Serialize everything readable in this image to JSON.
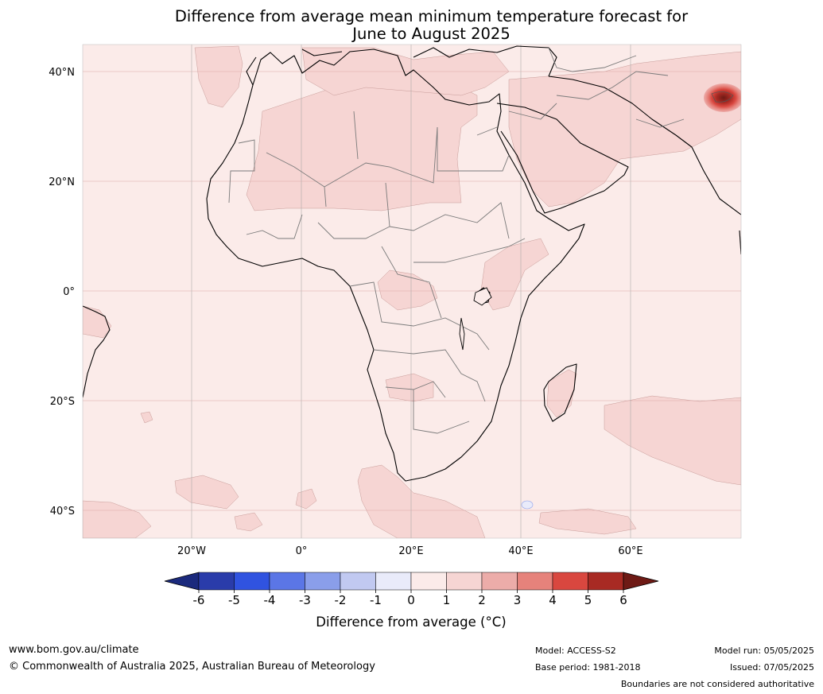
{
  "title": {
    "line1": "Difference from average mean minimum temperature forecast for",
    "line2": "June to August 2025"
  },
  "map": {
    "region": "Africa and surrounding oceans",
    "lat_labels": [
      "40°N",
      "20°N",
      "0°",
      "20°S",
      "40°S"
    ],
    "lon_labels": [
      "20°W",
      "0°",
      "20°E",
      "40°E",
      "60°E"
    ],
    "ocean_color": "#fbebe9",
    "anomaly_colors": {
      "1_to_2": "#f6d5d3",
      "2_to_3": "#ecaca9",
      "3_to_4": "#e6827b",
      "4_to_5": "#d9473f",
      "5_to_6": "#a82a23"
    }
  },
  "colorbar": {
    "ticks": [
      "-6",
      "-5",
      "-4",
      "-3",
      "-2",
      "-1",
      "0",
      "1",
      "2",
      "3",
      "4",
      "5",
      "6"
    ],
    "colors": [
      "#1b2a7d",
      "#2a3caa",
      "#3053e0",
      "#5b76e6",
      "#8a9eea",
      "#c1c9f1",
      "#e9ebfa",
      "#fbebe9",
      "#f6d5d3",
      "#ecaca9",
      "#e6827b",
      "#d9473f",
      "#a82a23",
      "#6e1a15"
    ],
    "label": "Difference from average (°C)"
  },
  "footer": {
    "website": "www.bom.gov.au/climate",
    "copyright": "© Commonwealth of Australia 2025, Australian Bureau of Meteorology",
    "model": "Model: ACCESS-S2",
    "base_period": "Base period: 1981-2018",
    "model_run": "Model run: 05/05/2025",
    "issued": "Issued: 07/05/2025",
    "disclaimer": "Boundaries are not considered authoritative"
  }
}
